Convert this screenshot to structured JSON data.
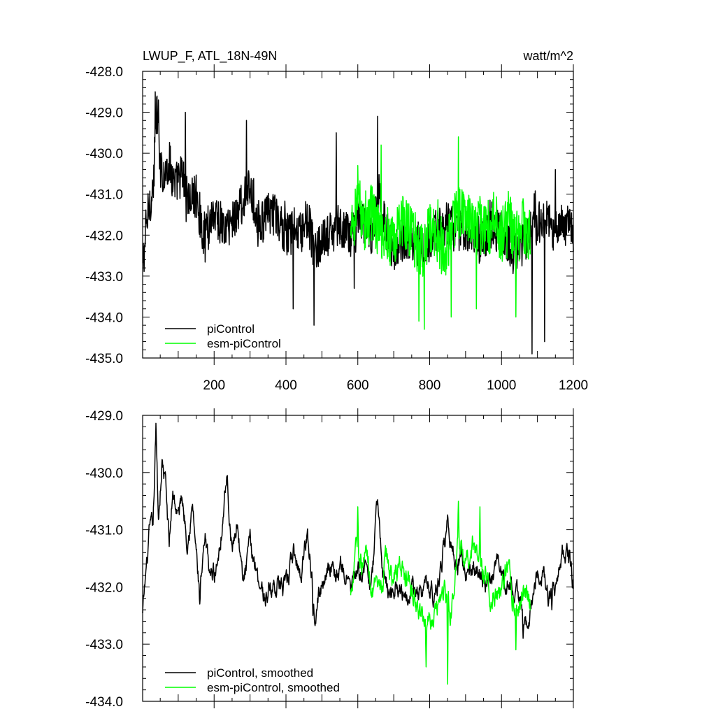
{
  "chart_data": [
    {
      "type": "line",
      "title": "LWUP_F, ATL_18N-49N",
      "units": "watt/m^2",
      "xlabel": "",
      "ylabel": "",
      "xlim": [
        1,
        1200
      ],
      "ylim": [
        -435.0,
        -428.0
      ],
      "xticks": [
        200,
        400,
        600,
        800,
        1000,
        1200
      ],
      "xtick_labels": [
        "200",
        "400",
        "600",
        "800",
        "1000",
        "1200"
      ],
      "yticks": [
        -428.0,
        -429.0,
        -430.0,
        -431.0,
        -432.0,
        -433.0,
        -434.0,
        -435.0
      ],
      "ytick_labels": [
        "-428.0",
        "-429.0",
        "-430.0",
        "-431.0",
        "-432.0",
        "-433.0",
        "-434.0",
        "-435.0"
      ],
      "grid": false,
      "legend_position": "bottom-left",
      "series": [
        {
          "name": "piControl",
          "color": "#000000",
          "x_start": 1,
          "x_end": 1200,
          "anchors": [
            [
              1,
              -432.8
            ],
            [
              10,
              -431.9
            ],
            [
              20,
              -431.2
            ],
            [
              30,
              -430.9
            ],
            [
              40,
              -429.0
            ],
            [
              50,
              -430.1
            ],
            [
              60,
              -430.6
            ],
            [
              75,
              -430.2
            ],
            [
              90,
              -430.8
            ],
            [
              110,
              -430.5
            ],
            [
              130,
              -431.2
            ],
            [
              150,
              -431.0
            ],
            [
              170,
              -432.0
            ],
            [
              200,
              -431.4
            ],
            [
              230,
              -431.9
            ],
            [
              260,
              -431.5
            ],
            [
              280,
              -431.2
            ],
            [
              300,
              -430.9
            ],
            [
              330,
              -431.7
            ],
            [
              360,
              -431.4
            ],
            [
              400,
              -432.0
            ],
            [
              420,
              -431.9
            ],
            [
              440,
              -432.0
            ],
            [
              460,
              -431.6
            ],
            [
              480,
              -432.4
            ],
            [
              500,
              -432.2
            ],
            [
              540,
              -431.8
            ],
            [
              580,
              -432.0
            ],
            [
              600,
              -431.5
            ],
            [
              640,
              -432.0
            ],
            [
              660,
              -431.0
            ],
            [
              680,
              -431.9
            ],
            [
              700,
              -432.4
            ],
            [
              740,
              -432.0
            ],
            [
              780,
              -432.3
            ],
            [
              800,
              -432.1
            ],
            [
              840,
              -431.7
            ],
            [
              870,
              -431.9
            ],
            [
              900,
              -431.8
            ],
            [
              940,
              -432.1
            ],
            [
              980,
              -431.8
            ],
            [
              1000,
              -432.0
            ],
            [
              1040,
              -432.5
            ],
            [
              1080,
              -431.9
            ],
            [
              1120,
              -431.6
            ],
            [
              1150,
              -432.0
            ],
            [
              1170,
              -431.6
            ],
            [
              1200,
              -432.0
            ]
          ],
          "noise_amplitude": 0.55,
          "spikes": [
            [
              36,
              -428.5
            ],
            [
              45,
              -428.7
            ],
            [
              120,
              -429.0
            ],
            [
              290,
              -429.2
            ],
            [
              420,
              -433.8
            ],
            [
              478,
              -434.2
            ],
            [
              540,
              -429.5
            ],
            [
              590,
              -433.3
            ],
            [
              655,
              -429.1
            ],
            [
              1085,
              -434.9
            ],
            [
              1120,
              -434.6
            ],
            [
              1150,
              -430.4
            ]
          ]
        },
        {
          "name": "esm-piControl",
          "color": "#00ff00",
          "x_start": 580,
          "x_end": 1080,
          "anchors": [
            [
              580,
              -432.2
            ],
            [
              600,
              -431.0
            ],
            [
              620,
              -431.8
            ],
            [
              640,
              -431.4
            ],
            [
              660,
              -432.0
            ],
            [
              680,
              -431.9
            ],
            [
              700,
              -432.2
            ],
            [
              720,
              -431.6
            ],
            [
              740,
              -431.8
            ],
            [
              760,
              -432.2
            ],
            [
              780,
              -432.4
            ],
            [
              800,
              -431.8
            ],
            [
              820,
              -432.0
            ],
            [
              840,
              -432.4
            ],
            [
              860,
              -431.9
            ],
            [
              880,
              -431.4
            ],
            [
              900,
              -431.5
            ],
            [
              920,
              -431.6
            ],
            [
              940,
              -431.8
            ],
            [
              960,
              -431.9
            ],
            [
              980,
              -431.6
            ],
            [
              1000,
              -432.0
            ],
            [
              1020,
              -431.6
            ],
            [
              1040,
              -432.1
            ],
            [
              1060,
              -431.8
            ],
            [
              1080,
              -432.0
            ]
          ],
          "noise_amplitude": 0.7,
          "spikes": [
            [
              600,
              -430.3
            ],
            [
              665,
              -429.8
            ],
            [
              770,
              -434.1
            ],
            [
              785,
              -434.3
            ],
            [
              860,
              -434.0
            ],
            [
              880,
              -429.6
            ],
            [
              930,
              -433.8
            ],
            [
              1040,
              -434.0
            ]
          ]
        }
      ]
    },
    {
      "type": "line",
      "title": "",
      "xlabel": "",
      "ylabel": "",
      "xlim": [
        1,
        1200
      ],
      "ylim": [
        -434.0,
        -429.0
      ],
      "xticks": [
        200,
        400,
        600,
        800,
        1000,
        1200
      ],
      "xtick_labels": [],
      "yticks": [
        -429.0,
        -430.0,
        -431.0,
        -432.0,
        -433.0,
        -434.0
      ],
      "ytick_labels": [
        "-429.0",
        "-430.0",
        "-431.0",
        "-432.0",
        "-433.0",
        "-434.0"
      ],
      "grid": false,
      "legend_position": "bottom-left",
      "series": [
        {
          "name": "piControl, smoothed",
          "color": "#000000",
          "x_start": 1,
          "x_end": 1200,
          "anchors": [
            [
              1,
              -432.5
            ],
            [
              10,
              -431.8
            ],
            [
              20,
              -431.1
            ],
            [
              30,
              -431.0
            ],
            [
              38,
              -429.3
            ],
            [
              45,
              -430.8
            ],
            [
              55,
              -429.8
            ],
            [
              65,
              -430.2
            ],
            [
              75,
              -431.3
            ],
            [
              85,
              -430.3
            ],
            [
              100,
              -430.8
            ],
            [
              110,
              -430.4
            ],
            [
              125,
              -431.1
            ],
            [
              140,
              -430.6
            ],
            [
              160,
              -432.2
            ],
            [
              175,
              -431.3
            ],
            [
              190,
              -431.8
            ],
            [
              205,
              -431.7
            ],
            [
              220,
              -431.0
            ],
            [
              235,
              -430.0
            ],
            [
              250,
              -431.4
            ],
            [
              265,
              -430.8
            ],
            [
              280,
              -432.0
            ],
            [
              300,
              -431.3
            ],
            [
              320,
              -431.7
            ],
            [
              340,
              -432.2
            ],
            [
              360,
              -432.0
            ],
            [
              380,
              -431.9
            ],
            [
              400,
              -432.1
            ],
            [
              420,
              -431.4
            ],
            [
              440,
              -431.8
            ],
            [
              460,
              -431.0
            ],
            [
              480,
              -432.3
            ],
            [
              500,
              -432.0
            ],
            [
              520,
              -431.5
            ],
            [
              540,
              -431.8
            ],
            [
              560,
              -431.7
            ],
            [
              580,
              -432.0
            ],
            [
              600,
              -431.8
            ],
            [
              620,
              -431.7
            ],
            [
              640,
              -431.9
            ],
            [
              655,
              -430.5
            ],
            [
              670,
              -431.8
            ],
            [
              690,
              -432.1
            ],
            [
              710,
              -431.9
            ],
            [
              730,
              -432.1
            ],
            [
              750,
              -431.9
            ],
            [
              770,
              -432.2
            ],
            [
              790,
              -432.0
            ],
            [
              810,
              -432.1
            ],
            [
              830,
              -431.8
            ],
            [
              850,
              -430.8
            ],
            [
              870,
              -431.6
            ],
            [
              890,
              -431.5
            ],
            [
              910,
              -431.8
            ],
            [
              930,
              -431.7
            ],
            [
              950,
              -431.9
            ],
            [
              970,
              -432.0
            ],
            [
              990,
              -431.6
            ],
            [
              1010,
              -431.9
            ],
            [
              1030,
              -432.0
            ],
            [
              1050,
              -432.3
            ],
            [
              1070,
              -432.6
            ],
            [
              1090,
              -432.1
            ],
            [
              1110,
              -431.6
            ],
            [
              1130,
              -432.2
            ],
            [
              1150,
              -431.9
            ],
            [
              1170,
              -431.4
            ],
            [
              1190,
              -431.5
            ],
            [
              1200,
              -432.0
            ]
          ],
          "noise_amplitude": 0.28,
          "spikes": [
            [
              160,
              -432.3
            ],
            [
              475,
              -432.5
            ],
            [
              1060,
              -432.9
            ],
            [
              1140,
              -432.4
            ]
          ]
        },
        {
          "name": "esm-piControl, smoothed",
          "color": "#00ff00",
          "x_start": 580,
          "x_end": 1080,
          "anchors": [
            [
              580,
              -432.2
            ],
            [
              595,
              -431.0
            ],
            [
              610,
              -431.6
            ],
            [
              625,
              -431.4
            ],
            [
              640,
              -432.0
            ],
            [
              660,
              -432.3
            ],
            [
              680,
              -431.5
            ],
            [
              700,
              -431.9
            ],
            [
              720,
              -431.6
            ],
            [
              740,
              -432.0
            ],
            [
              760,
              -432.3
            ],
            [
              780,
              -432.6
            ],
            [
              800,
              -432.5
            ],
            [
              820,
              -432.3
            ],
            [
              840,
              -432.0
            ],
            [
              860,
              -432.4
            ],
            [
              880,
              -431.2
            ],
            [
              900,
              -431.8
            ],
            [
              920,
              -431.3
            ],
            [
              940,
              -431.6
            ],
            [
              960,
              -431.9
            ],
            [
              980,
              -432.2
            ],
            [
              1000,
              -432.0
            ],
            [
              1020,
              -431.8
            ],
            [
              1040,
              -432.5
            ],
            [
              1060,
              -432.0
            ],
            [
              1080,
              -432.3
            ]
          ],
          "noise_amplitude": 0.35,
          "spikes": [
            [
              600,
              -430.6
            ],
            [
              790,
              -433.4
            ],
            [
              850,
              -433.7
            ],
            [
              880,
              -430.5
            ],
            [
              940,
              -430.6
            ],
            [
              1040,
              -433.1
            ]
          ]
        }
      ]
    }
  ]
}
